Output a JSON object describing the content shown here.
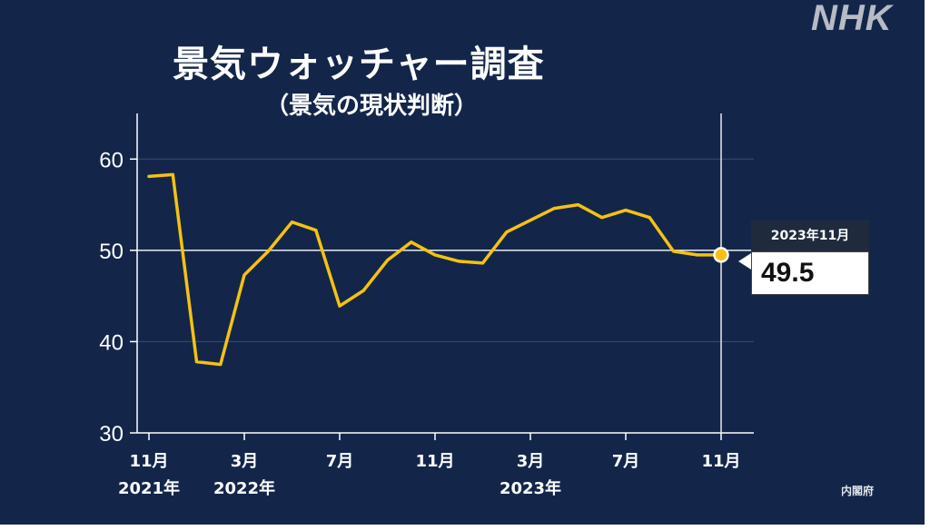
{
  "logo": "NHK",
  "source": "内閣府",
  "colors": {
    "background": "#13264a",
    "line": "#f5c211",
    "axis": "#ffffff"
  },
  "callout": {
    "date": "2023年11月",
    "value": "49.5"
  },
  "chart_data": {
    "type": "line",
    "title": "景気ウォッチャー調査",
    "subtitle": "（景気の現状判断）",
    "xlabel": "",
    "ylabel": "",
    "ylim": [
      30,
      65
    ],
    "y_ticks": [
      30,
      40,
      50,
      60
    ],
    "x_tick_labels": [
      {
        "month_index": 0,
        "lines": [
          "11月",
          "2021年"
        ]
      },
      {
        "month_index": 4,
        "lines": [
          "3月",
          "2022年"
        ]
      },
      {
        "month_index": 8,
        "lines": [
          "7月"
        ]
      },
      {
        "month_index": 12,
        "lines": [
          "11月"
        ]
      },
      {
        "month_index": 16,
        "lines": [
          "3月",
          "2023年"
        ]
      },
      {
        "month_index": 20,
        "lines": [
          "7月"
        ]
      },
      {
        "month_index": 24,
        "lines": [
          "11月"
        ]
      }
    ],
    "reference_line": 50,
    "grid": true,
    "x": [
      "2021-11",
      "2021-12",
      "2022-01",
      "2022-02",
      "2022-03",
      "2022-04",
      "2022-05",
      "2022-06",
      "2022-07",
      "2022-08",
      "2022-09",
      "2022-10",
      "2022-11",
      "2022-12",
      "2023-01",
      "2023-02",
      "2023-03",
      "2023-04",
      "2023-05",
      "2023-06",
      "2023-07",
      "2023-08",
      "2023-09",
      "2023-10",
      "2023-11"
    ],
    "series": [
      {
        "values": [
          58.1,
          58.3,
          37.8,
          37.5,
          47.3,
          49.9,
          53.1,
          52.2,
          43.9,
          45.6,
          48.9,
          50.9,
          49.5,
          48.8,
          48.6,
          52.0,
          53.3,
          54.6,
          55.0,
          53.6,
          54.4,
          53.6,
          49.9,
          49.5,
          49.5
        ]
      }
    ]
  }
}
